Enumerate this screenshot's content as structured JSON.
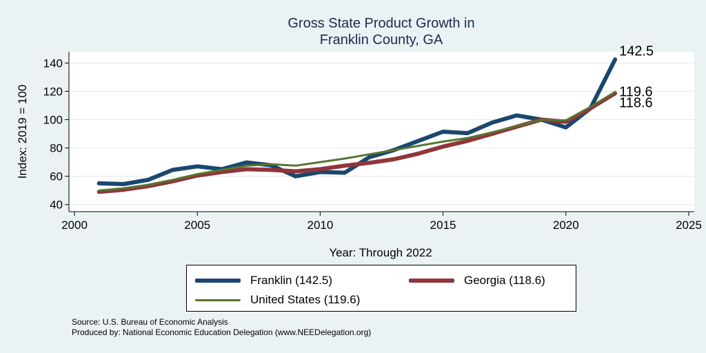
{
  "chart_data": {
    "type": "line",
    "title": [
      "Gross State Product Growth in",
      "Franklin County, GA"
    ],
    "xlabel": "Year: Through 2022",
    "ylabel": "Index: 2019 = 100",
    "xlim": [
      2000,
      2025
    ],
    "ylim": [
      35,
      148
    ],
    "xticks": [
      2000,
      2005,
      2010,
      2015,
      2020,
      2025
    ],
    "yticks": [
      40,
      60,
      80,
      100,
      120,
      140
    ],
    "grid": true,
    "x": [
      2001,
      2002,
      2003,
      2004,
      2005,
      2006,
      2007,
      2008,
      2009,
      2010,
      2011,
      2012,
      2013,
      2014,
      2015,
      2016,
      2017,
      2018,
      2019,
      2020,
      2021,
      2022
    ],
    "series": [
      {
        "name": "Franklin",
        "legend": "Franklin  (142.5)",
        "color": "#1a476f",
        "width": 6,
        "end_label": "142.5",
        "values": [
          55,
          54.5,
          57.5,
          64.5,
          67,
          65,
          69.8,
          67.8,
          60,
          63,
          62.5,
          73.5,
          78.5,
          85,
          91.5,
          90.5,
          98,
          103,
          100,
          94.5,
          108,
          142.5
        ]
      },
      {
        "name": "Georgia",
        "legend": "Georgia (118.6)",
        "color": "#90353b",
        "width": 6,
        "end_label": "118.6",
        "values": [
          49,
          50.5,
          53,
          56.5,
          60.5,
          63,
          65,
          64.5,
          63.5,
          65,
          67.5,
          69.5,
          72,
          76,
          81,
          85,
          90,
          95,
          100,
          98.5,
          108,
          118.6
        ]
      },
      {
        "name": "United States",
        "legend": "United States (119.6)",
        "color": "#55752f",
        "width": 3,
        "end_label": "119.6",
        "values": [
          50,
          51.5,
          54,
          57.5,
          61.5,
          64.5,
          67.5,
          68.5,
          67.5,
          70,
          72.5,
          75.5,
          78.5,
          81.5,
          84.5,
          87,
          91,
          95.5,
          100,
          99.5,
          109,
          119.6
        ]
      }
    ]
  },
  "source": {
    "line1": "Source: U.S. Bureau of Economic Analysis",
    "line2": "Produced by: National Economic Education Delegation (www.NEEDelegation.org)"
  }
}
